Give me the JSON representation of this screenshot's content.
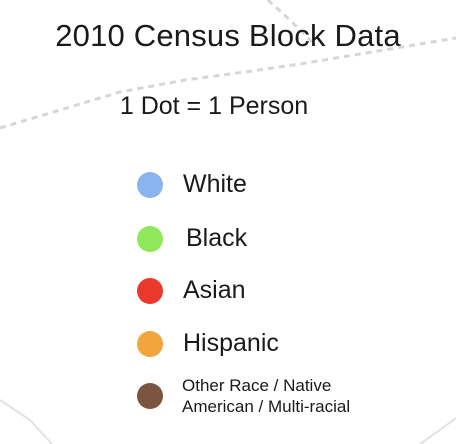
{
  "legend": {
    "title": "2010 Census Block Data",
    "subtitle": "1 Dot = 1 Person",
    "items": [
      {
        "label": "White",
        "color": "#8ab4f0"
      },
      {
        "label": "Black",
        "color": "#8fe85a"
      },
      {
        "label": "Asian",
        "color": "#e8392c"
      },
      {
        "label": "Hispanic",
        "color": "#f2a53c"
      },
      {
        "label_line1": "Other Race / Native",
        "label_line2": "American / Multi-racial",
        "color": "#7a5640"
      }
    ]
  }
}
